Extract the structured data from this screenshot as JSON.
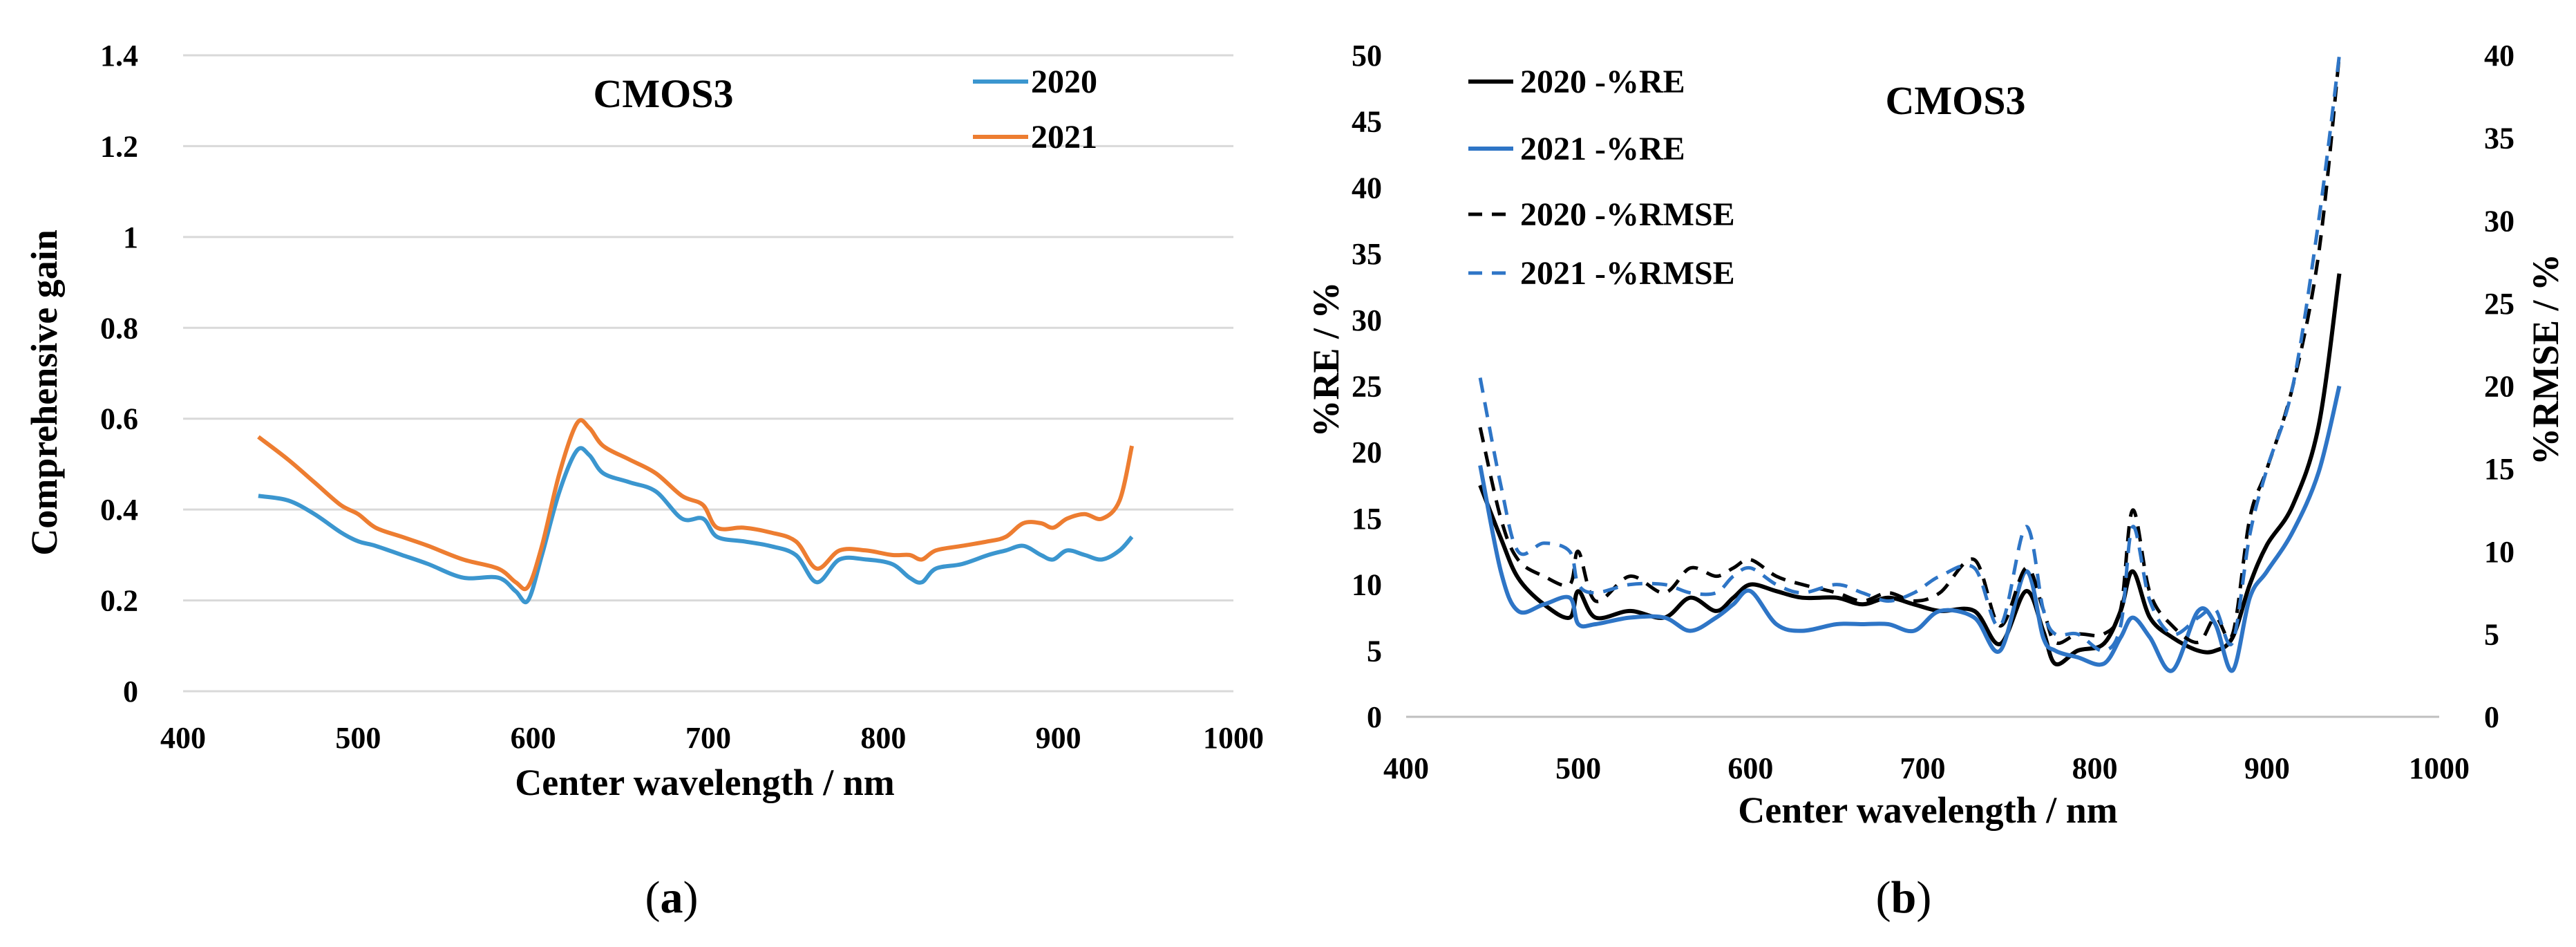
{
  "chart_data": [
    {
      "type": "line",
      "panel_caption": "a",
      "title": "CMOS3",
      "xlabel": "Center wavelength / nm",
      "ylabel": "Comprehensive gain",
      "xlim": [
        400,
        1000
      ],
      "ylim": [
        0,
        1.4
      ],
      "xticks": [
        "400",
        "500",
        "600",
        "700",
        "800",
        "900",
        "1000"
      ],
      "yticks": [
        "0",
        "0.2",
        "0.4",
        "0.6",
        "0.8",
        "1",
        "1.2",
        "1.4"
      ],
      "grid": "horizontal",
      "legend_position": "top-right",
      "series": [
        {
          "name": "2020",
          "color": "#3b96cf",
          "dash": "solid",
          "x": [
            443,
            460,
            475,
            490,
            500,
            510,
            525,
            540,
            560,
            580,
            590,
            597,
            605,
            615,
            625,
            632,
            640,
            655,
            670,
            685,
            697,
            705,
            720,
            735,
            750,
            762,
            775,
            790,
            805,
            815,
            822,
            830,
            845,
            860,
            870,
            880,
            890,
            897,
            905,
            915,
            925,
            935,
            942
          ],
          "y": [
            0.43,
            0.42,
            0.39,
            0.35,
            0.33,
            0.32,
            0.3,
            0.28,
            0.25,
            0.25,
            0.22,
            0.2,
            0.3,
            0.44,
            0.53,
            0.52,
            0.48,
            0.46,
            0.44,
            0.38,
            0.38,
            0.34,
            0.33,
            0.32,
            0.3,
            0.24,
            0.29,
            0.29,
            0.28,
            0.25,
            0.24,
            0.27,
            0.28,
            0.3,
            0.31,
            0.32,
            0.3,
            0.29,
            0.31,
            0.3,
            0.29,
            0.31,
            0.34
          ]
        },
        {
          "name": "2021",
          "color": "#ed7d31",
          "dash": "solid",
          "x": [
            443,
            460,
            475,
            490,
            500,
            510,
            525,
            540,
            560,
            580,
            590,
            597,
            605,
            615,
            625,
            632,
            640,
            655,
            670,
            685,
            697,
            705,
            720,
            735,
            750,
            762,
            775,
            790,
            805,
            815,
            822,
            830,
            845,
            860,
            870,
            880,
            890,
            897,
            905,
            915,
            925,
            935,
            942
          ],
          "y": [
            0.56,
            0.51,
            0.46,
            0.41,
            0.39,
            0.36,
            0.34,
            0.32,
            0.29,
            0.27,
            0.24,
            0.23,
            0.32,
            0.48,
            0.59,
            0.58,
            0.54,
            0.51,
            0.48,
            0.43,
            0.41,
            0.36,
            0.36,
            0.35,
            0.33,
            0.27,
            0.31,
            0.31,
            0.3,
            0.3,
            0.29,
            0.31,
            0.32,
            0.33,
            0.34,
            0.37,
            0.37,
            0.36,
            0.38,
            0.39,
            0.38,
            0.42,
            0.54
          ]
        }
      ]
    },
    {
      "type": "line",
      "panel_caption": "b",
      "title": "CMOS3",
      "xlabel": "Center wavelength / nm",
      "ylabel": "%RE / %",
      "y2label": "%RMSE / %",
      "xlim": [
        400,
        1000
      ],
      "ylim": [
        0,
        50
      ],
      "y2lim": [
        0,
        40
      ],
      "xticks": [
        "400",
        "500",
        "600",
        "700",
        "800",
        "900",
        "1000"
      ],
      "yticks": [
        "0",
        "5",
        "10",
        "15",
        "20",
        "25",
        "30",
        "35",
        "40",
        "45",
        "50"
      ],
      "y2ticks": [
        "0",
        "5",
        "10",
        "15",
        "20",
        "25",
        "30",
        "35",
        "40"
      ],
      "grid": "none",
      "legend_position": "top-left",
      "series": [
        {
          "name": "2020 -%RE",
          "axis": "left",
          "color": "#000000",
          "dash": "solid",
          "x": [
            443,
            455,
            465,
            480,
            495,
            500,
            510,
            530,
            550,
            565,
            580,
            590,
            600,
            615,
            630,
            650,
            665,
            680,
            695,
            710,
            730,
            745,
            760,
            770,
            777,
            790,
            805,
            815,
            822,
            832,
            845,
            860,
            870,
            880,
            890,
            900,
            915,
            930,
            942
          ],
          "y": [
            17.5,
            13.5,
            10.5,
            8.5,
            7.5,
            9.5,
            7.5,
            8,
            7.5,
            9,
            8,
            9,
            10,
            9.5,
            9,
            9,
            8.5,
            9,
            8.5,
            8,
            8,
            5.5,
            9.5,
            6.5,
            4,
            5,
            5.5,
            8,
            11,
            7.5,
            6,
            5,
            5,
            6,
            10,
            13,
            16,
            22,
            33.5
          ]
        },
        {
          "name": "2021 -%RE",
          "axis": "left",
          "color": "#2e75c6",
          "dash": "solid",
          "x": [
            443,
            455,
            465,
            480,
            495,
            500,
            510,
            530,
            550,
            565,
            580,
            590,
            600,
            615,
            630,
            650,
            665,
            680,
            695,
            710,
            730,
            745,
            760,
            770,
            777,
            790,
            805,
            815,
            822,
            832,
            845,
            860,
            870,
            880,
            890,
            900,
            915,
            930,
            942
          ],
          "y": [
            19,
            11,
            8,
            8.5,
            9,
            7,
            7,
            7.5,
            7.5,
            6.5,
            7.5,
            8.5,
            9.5,
            7,
            6.5,
            7,
            7,
            7,
            6.5,
            8,
            7.5,
            5,
            11,
            6,
            5,
            4.5,
            4,
            6,
            7.5,
            6,
            3.5,
            8,
            7,
            3.5,
            9,
            11,
            14,
            18.5,
            25
          ]
        },
        {
          "name": "2020 -%RMSE",
          "axis": "right",
          "color": "#000000",
          "dash": "dashed",
          "x": [
            443,
            455,
            465,
            480,
            495,
            500,
            510,
            530,
            550,
            565,
            580,
            590,
            600,
            615,
            630,
            650,
            665,
            680,
            695,
            710,
            730,
            745,
            760,
            770,
            777,
            790,
            805,
            815,
            822,
            832,
            845,
            860,
            870,
            880,
            890,
            900,
            915,
            930,
            942
          ],
          "y": [
            17.5,
            12,
            9.5,
            8.5,
            8,
            10,
            7,
            8.5,
            7.5,
            9,
            8.5,
            9,
            9.5,
            8.5,
            8,
            7.5,
            7,
            7.5,
            7,
            7.5,
            9.5,
            5.5,
            9,
            6.5,
            4.5,
            5,
            5,
            6.5,
            12.5,
            7.5,
            5.5,
            4.5,
            6,
            5,
            12,
            15,
            20,
            28,
            40
          ]
        },
        {
          "name": "2021 -%RMSE",
          "axis": "right",
          "color": "#2e75c6",
          "dash": "dashed",
          "x": [
            443,
            455,
            465,
            480,
            495,
            500,
            510,
            530,
            550,
            565,
            580,
            590,
            600,
            615,
            630,
            650,
            665,
            680,
            695,
            710,
            730,
            745,
            760,
            770,
            777,
            790,
            805,
            815,
            822,
            832,
            845,
            860,
            870,
            880,
            890,
            900,
            915,
            930,
            942
          ],
          "y": [
            20.5,
            14,
            10,
            10.5,
            10,
            8,
            7.5,
            8,
            8,
            7.5,
            7.5,
            8.5,
            9,
            8,
            7.5,
            8,
            7.5,
            7,
            7.5,
            8.5,
            9,
            5.5,
            11.5,
            6.5,
            5,
            5,
            4,
            5.5,
            11.5,
            7,
            5,
            6,
            6.5,
            4.5,
            11,
            15,
            20,
            30,
            40
          ]
        }
      ]
    }
  ]
}
